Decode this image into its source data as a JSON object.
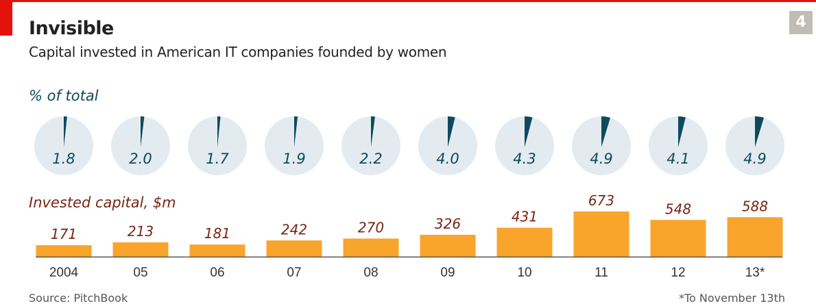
{
  "header": {
    "title": "Invisible",
    "subtitle": "Capital invested in American IT companies founded by women",
    "badge": "4"
  },
  "colors": {
    "brand_red": "#e3120b",
    "pie_bg": "#e3ebf0",
    "pie_wedge": "#0e4a5c",
    "bar": "#f9a42b",
    "bar_label": "#7a2511",
    "axis": "#555555"
  },
  "footer": {
    "source": "Source: PitchBook",
    "note": "*To November 13th"
  },
  "chart_data": [
    {
      "type": "pie",
      "title": "% of total",
      "categories": [
        "2004",
        "05",
        "06",
        "07",
        "08",
        "09",
        "10",
        "11",
        "12",
        "13*"
      ],
      "values": [
        1.8,
        2.0,
        1.7,
        1.9,
        2.2,
        4.0,
        4.3,
        4.9,
        4.1,
        4.9
      ],
      "labels": [
        "1.8",
        "2.0",
        "1.7",
        "1.9",
        "2.2",
        "4.0",
        "4.3",
        "4.9",
        "4.1",
        "4.9"
      ],
      "unit": "%"
    },
    {
      "type": "bar",
      "title": "Invested capital, $m",
      "categories": [
        "2004",
        "05",
        "06",
        "07",
        "08",
        "09",
        "10",
        "11",
        "12",
        "13*"
      ],
      "values": [
        171,
        213,
        181,
        242,
        270,
        326,
        431,
        673,
        548,
        588
      ],
      "labels": [
        "171",
        "213",
        "181",
        "242",
        "270",
        "326",
        "431",
        "673",
        "548",
        "588"
      ],
      "xlabel": "",
      "ylabel": "$m",
      "ylim": [
        0,
        700
      ],
      "grid": false
    }
  ]
}
